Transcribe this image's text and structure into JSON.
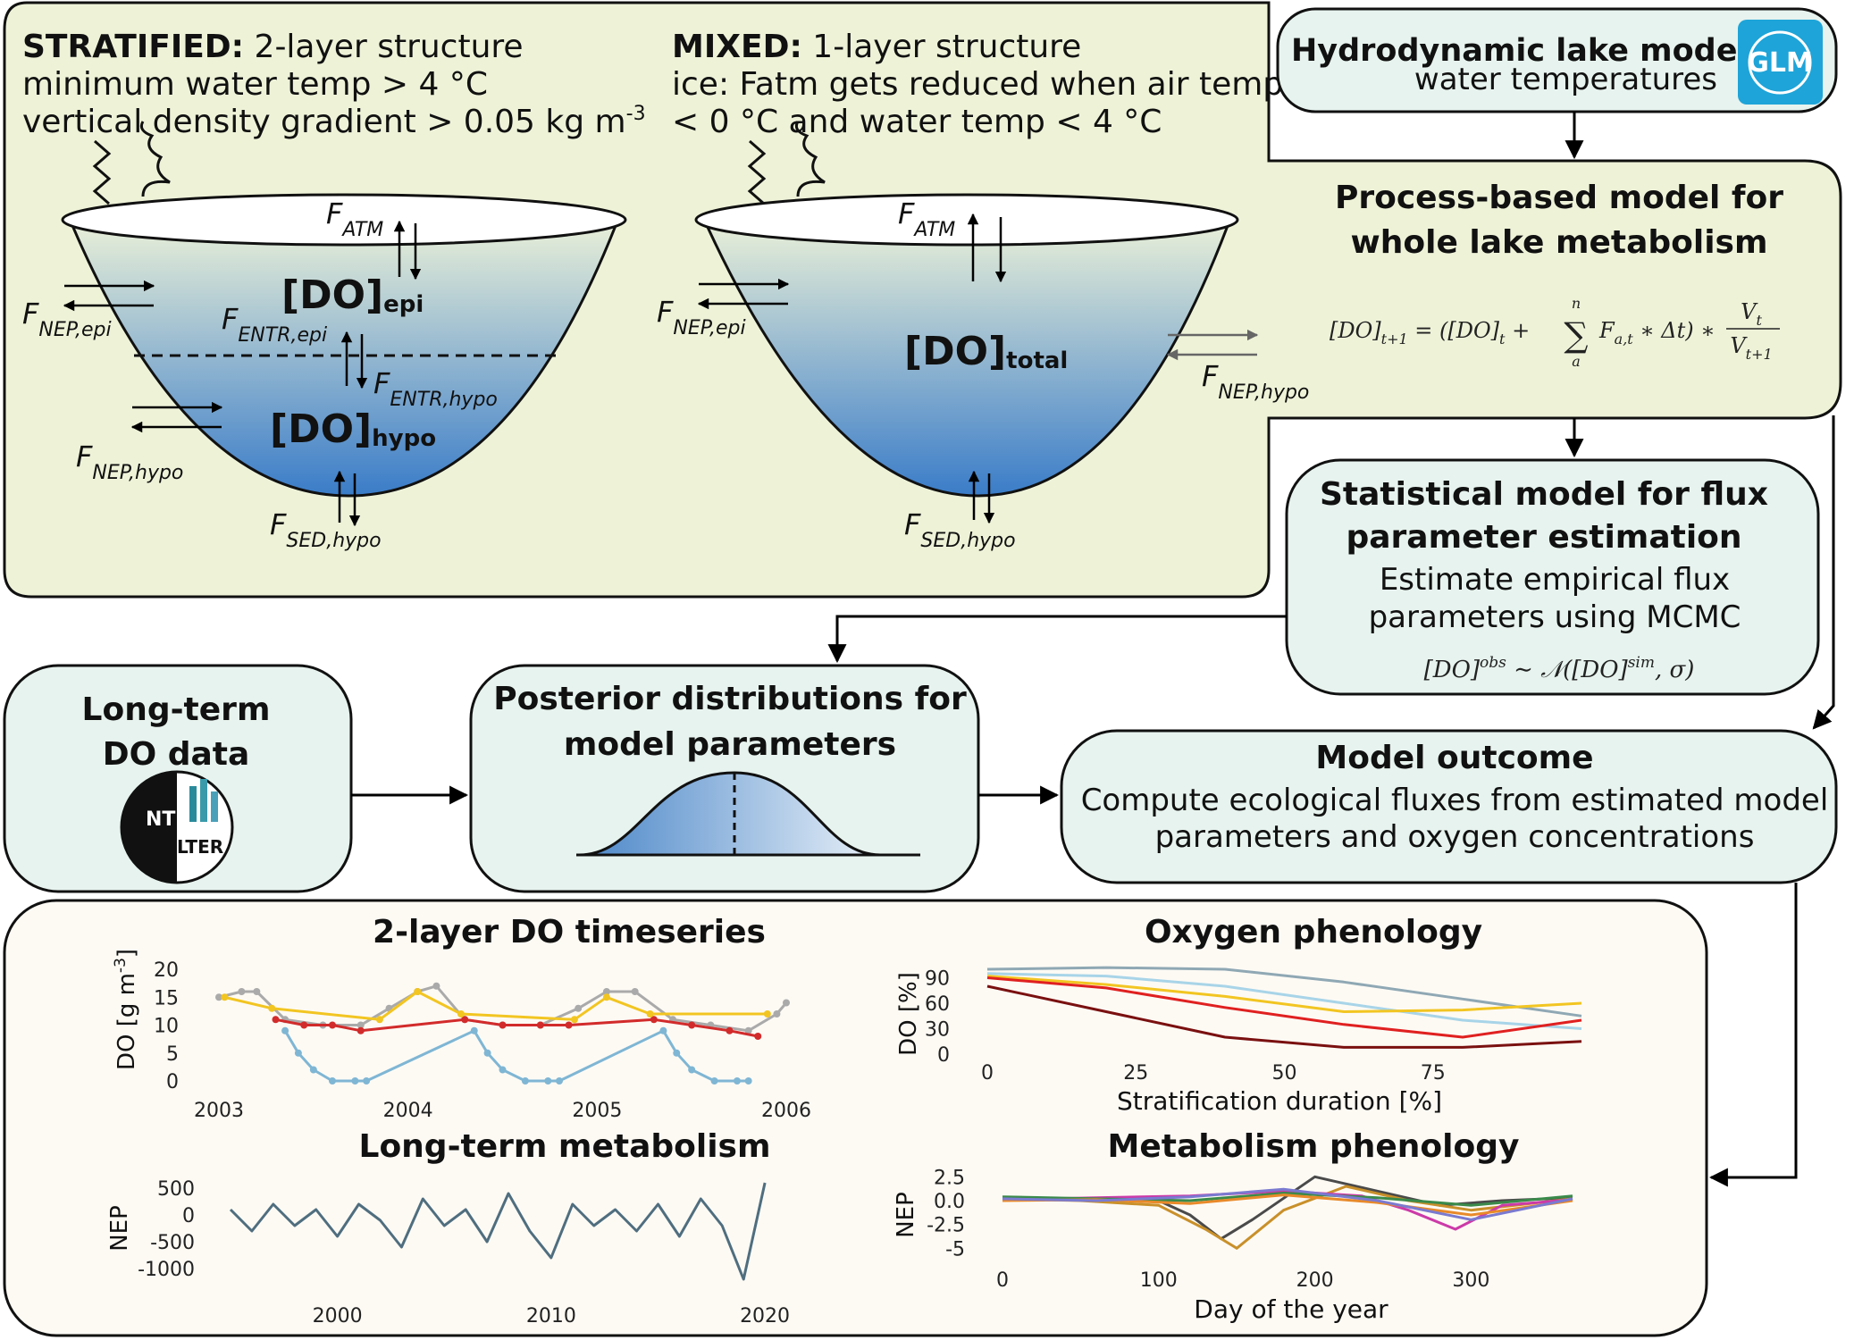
{
  "stratified": {
    "title": "STRATIFIED:",
    "subtitle": " 2-layer structure",
    "line2": "minimum water temp > 4 °C",
    "line3": "vertical density gradient > 0.05 kg m",
    "line3_sup": "-3",
    "do_epi": "[DO]",
    "do_epi_sub": "epi",
    "do_hypo": "[DO]",
    "do_hypo_sub": "hypo"
  },
  "mixed": {
    "title": "MIXED:",
    "subtitle": " 1-layer structure",
    "line2": "ice: Fatm gets reduced when air temp.",
    "line3": "< 0 °C and water temp < 4 °C",
    "do_total": "[DO]",
    "do_total_sub": "total"
  },
  "flux": {
    "f": "F",
    "atm": "ATM",
    "nep_epi": "NEP,epi",
    "nep_hypo": "NEP,hypo",
    "entr_epi": "ENTR,epi",
    "entr_hypo": "ENTR,hypo",
    "sed_hypo": "SED,hypo"
  },
  "hydro": {
    "title": "Hydrodynamic lake model",
    "subtitle": "water temperatures",
    "logo": "GLM",
    "logo_icon": "glm-logo-icon"
  },
  "process": {
    "title1": "Process-based model for",
    "title2": "whole lake metabolism",
    "eq_lhs": "[DO]",
    "eq_lhs_sub": "t+1",
    "eq_mid": " = ([DO]",
    "eq_mid_sub": "t",
    "eq_plus": " + ",
    "eq_sum": "∑",
    "eq_sum_top": "n",
    "eq_sum_bot": "a",
    "eq_f": "F",
    "eq_f_sub": "a,t",
    "eq_dt": " ∗ Δt) ∗ ",
    "eq_num": "V",
    "eq_num_sub": "t",
    "eq_den": "V",
    "eq_den_sub": "t+1"
  },
  "statistical": {
    "title1": "Statistical model for flux",
    "title2": "parameter estimation",
    "line1": "Estimate empirical flux",
    "line2": "parameters using MCMC",
    "eq_a": "[DO]",
    "eq_a_sup": "obs",
    "eq_b": " ∼ 𝒩([DO]",
    "eq_b_sup": "sim",
    "eq_c": ", σ)"
  },
  "longterm": {
    "title1": "Long-term",
    "title2": "DO data",
    "logo1": "NTL",
    "logo2": "LTER",
    "logo_icon": "ntl-lter-logo-icon"
  },
  "posterior": {
    "title1": "Posterior distributions for",
    "title2": "model parameters"
  },
  "outcome": {
    "title": "Model outcome",
    "line1": "Compute ecological fluxes from estimated model",
    "line2": "parameters and oxygen concentrations"
  },
  "colors": {
    "panel_green": "#eef3d8",
    "box_teal": "#e7f3ee",
    "results_bg": "#fdfaf4",
    "lake_top": "#e8efd8",
    "lake_bottom": "#3a7cc8"
  },
  "chart_data": [
    {
      "id": "do-timeseries",
      "type": "line",
      "title": "2-layer DO timeseries",
      "ylabel": "DO [g m",
      "ylabel_sup": "-3",
      "ylabel_close": "]",
      "xlim": [
        2003,
        2006
      ],
      "ylim": [
        0,
        20
      ],
      "xticks": [
        2003,
        2004,
        2005,
        2006
      ],
      "yticks": [
        0,
        5,
        10,
        15,
        20
      ],
      "series": [
        {
          "color": "#aaaaaa",
          "x": [
            2003.0,
            2003.12,
            2003.2,
            2003.35,
            2003.55,
            2003.75,
            2003.9,
            2004.05,
            2004.15,
            2004.3,
            2004.5,
            2004.7,
            2004.9,
            2005.05,
            2005.2,
            2005.4,
            2005.6,
            2005.8,
            2005.95,
            2006.0
          ],
          "y": [
            15,
            16,
            16,
            11,
            10,
            10,
            13,
            16,
            17,
            11,
            10,
            10,
            13,
            16,
            16,
            11,
            10,
            9,
            12,
            14
          ]
        },
        {
          "color": "#d22b2b",
          "x": [
            2003.3,
            2003.45,
            2003.6,
            2003.75,
            2004.3,
            2004.5,
            2004.7,
            2004.85,
            2005.3,
            2005.5,
            2005.7,
            2005.85
          ],
          "y": [
            11,
            10,
            10,
            9,
            11,
            10,
            10,
            10,
            11,
            10,
            9,
            8
          ]
        },
        {
          "color": "#7fb6d4",
          "x": [
            2003.35,
            2003.42,
            2003.5,
            2003.6,
            2003.72,
            2003.78,
            2004.35,
            2004.42,
            2004.5,
            2004.62,
            2004.74,
            2004.8,
            2005.35,
            2005.42,
            2005.5,
            2005.62,
            2005.74,
            2005.8
          ],
          "y": [
            9,
            5,
            2,
            0,
            0,
            0,
            9,
            5,
            2,
            0,
            0,
            0,
            9,
            5,
            2,
            0,
            0,
            0
          ]
        },
        {
          "color": "#f2c521",
          "x": [
            2003.03,
            2003.28,
            2003.85,
            2004.05,
            2004.28,
            2004.88,
            2005.05,
            2005.28,
            2005.9
          ],
          "y": [
            15,
            13,
            11,
            16,
            12,
            11,
            15,
            12,
            12
          ]
        }
      ]
    },
    {
      "id": "oxygen-phenology",
      "type": "line",
      "title": "Oxygen phenology",
      "xlabel": "Stratification duration [%]",
      "ylabel": "DO [%]",
      "xlim": [
        0,
        100
      ],
      "ylim": [
        0,
        100
      ],
      "xticks": [
        0,
        25,
        50,
        75
      ],
      "yticks": [
        0,
        30,
        60,
        90
      ],
      "series": [
        {
          "color": "#8fa8b4",
          "x": [
            0,
            20,
            40,
            60,
            80,
            100
          ],
          "y": [
            100,
            102,
            100,
            85,
            65,
            45
          ]
        },
        {
          "color": "#a8d4e8",
          "x": [
            0,
            20,
            40,
            60,
            80,
            100
          ],
          "y": [
            95,
            92,
            80,
            60,
            40,
            30
          ]
        },
        {
          "color": "#f2c521",
          "x": [
            0,
            20,
            40,
            60,
            80,
            100
          ],
          "y": [
            92,
            82,
            68,
            50,
            52,
            60
          ]
        },
        {
          "color": "#e02020",
          "x": [
            0,
            20,
            40,
            60,
            80,
            100
          ],
          "y": [
            90,
            78,
            55,
            35,
            20,
            40
          ]
        },
        {
          "color": "#7a1010",
          "x": [
            0,
            20,
            40,
            60,
            80,
            100
          ],
          "y": [
            80,
            50,
            20,
            8,
            8,
            15
          ]
        }
      ]
    },
    {
      "id": "longterm-metabolism",
      "type": "line",
      "title": "Long-term metabolism",
      "ylabel": "NEP",
      "xlim": [
        1995,
        2021
      ],
      "ylim": [
        -1200,
        700
      ],
      "xticks": [
        2000,
        2010,
        2020
      ],
      "yticks": [
        500,
        0,
        -500,
        -1000
      ],
      "series": [
        {
          "color": "#4f6e7f",
          "x": [
            1995,
            1996,
            1997,
            1998,
            1999,
            2000,
            2001,
            2002,
            2003,
            2004,
            2005,
            2006,
            2007,
            2008,
            2009,
            2010,
            2011,
            2012,
            2013,
            2014,
            2015,
            2016,
            2017,
            2018,
            2019,
            2020
          ],
          "y": [
            100,
            -300,
            200,
            -200,
            100,
            -400,
            200,
            -100,
            -600,
            300,
            -200,
            100,
            -500,
            400,
            -300,
            -800,
            200,
            -200,
            100,
            -300,
            200,
            -400,
            300,
            -200,
            -1200,
            600
          ]
        }
      ]
    },
    {
      "id": "metabolism-phenology",
      "type": "line",
      "title": "Metabolism phenology",
      "xlabel": "Day of the year",
      "ylabel": "NEP",
      "xlim": [
        0,
        365
      ],
      "ylim": [
        -6,
        3
      ],
      "xticks": [
        0,
        100,
        200,
        300
      ],
      "yticks": [
        2.5,
        0.0,
        -2.5,
        -5.0
      ],
      "series": [
        {
          "color": "#4a4a4a",
          "x": [
            0,
            50,
            100,
            120,
            140,
            160,
            200,
            240,
            280,
            320,
            365
          ],
          "y": [
            0.3,
            0.2,
            0,
            -1.5,
            -4,
            -2,
            2.5,
            1,
            -0.5,
            0,
            0.3
          ]
        },
        {
          "color": "#c9902a",
          "x": [
            0,
            50,
            100,
            130,
            150,
            180,
            220,
            260,
            300,
            365
          ],
          "y": [
            0.2,
            0,
            -0.5,
            -3,
            -5,
            -1,
            1.5,
            0,
            -1,
            0.2
          ]
        },
        {
          "color": "#cc3aa8",
          "x": [
            0,
            60,
            120,
            180,
            230,
            260,
            290,
            320,
            365
          ],
          "y": [
            0.1,
            0.3,
            0.5,
            1,
            0.5,
            -1,
            -3,
            -0.5,
            0.1
          ]
        },
        {
          "color": "#3a8a4a",
          "x": [
            0,
            60,
            120,
            180,
            240,
            300,
            365
          ],
          "y": [
            0.4,
            0.2,
            0,
            0.8,
            0.3,
            -0.5,
            0.5
          ]
        },
        {
          "color": "#e88a2a",
          "x": [
            0,
            60,
            120,
            180,
            240,
            300,
            365
          ],
          "y": [
            0,
            0.1,
            -0.3,
            0.6,
            -0.2,
            -1.5,
            0
          ]
        },
        {
          "color": "#7a7ad0",
          "x": [
            0,
            60,
            120,
            180,
            240,
            300,
            365
          ],
          "y": [
            0.2,
            0,
            0.4,
            1.2,
            0,
            -2,
            0.2
          ]
        }
      ]
    }
  ]
}
